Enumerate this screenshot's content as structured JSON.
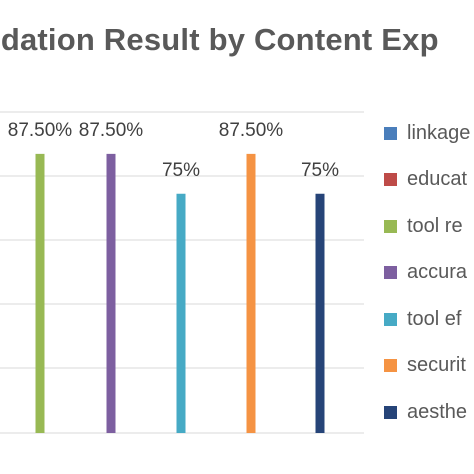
{
  "chart_data": {
    "type": "bar",
    "title": "idation Result by Content Exp",
    "categories": [
      "linkage",
      "educat",
      "tool re",
      "accura",
      "tool ef",
      "securit",
      "aesthe"
    ],
    "series": [
      {
        "name": "linkage",
        "color": "#4a7ebb",
        "value": null
      },
      {
        "name": "educat",
        "color": "#be4b48",
        "value": null
      },
      {
        "name": "tool re",
        "color": "#98b954",
        "value": 87.5,
        "label": "87.50%"
      },
      {
        "name": "accura",
        "color": "#7d5fa0",
        "value": 87.5,
        "label": "87.50%"
      },
      {
        "name": "tool ef",
        "color": "#46aac5",
        "value": 75,
        "label": "75%"
      },
      {
        "name": "securit",
        "color": "#f59343",
        "value": 87.5,
        "label": "87.50%"
      },
      {
        "name": "aesthe",
        "color": "#264478",
        "value": 75,
        "label": "75%"
      }
    ],
    "ylim": [
      0,
      100
    ],
    "grid": true,
    "legend": "right"
  }
}
